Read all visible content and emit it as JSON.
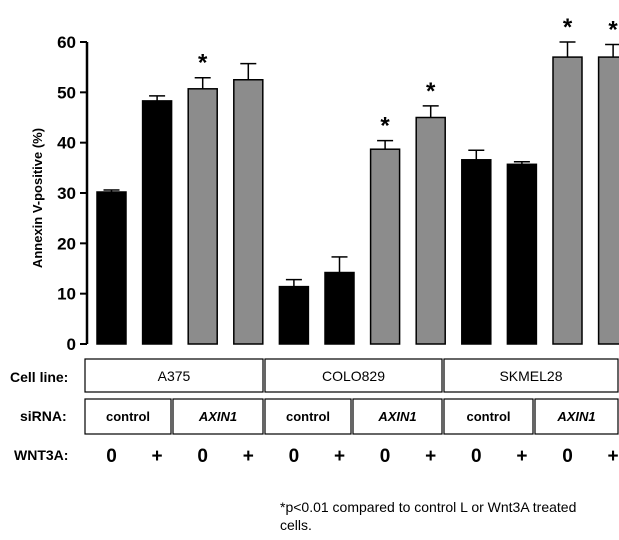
{
  "chart_data": {
    "type": "bar",
    "ylabel": "Annexin V-positive (%)",
    "ylim": [
      0,
      60
    ],
    "yticks": [
      "0",
      "10",
      "20",
      "30",
      "40",
      "50",
      "60"
    ],
    "bars": [
      {
        "cell_line": "A375",
        "sirna": "control",
        "wnt3a": "0",
        "value": 30.2,
        "error": 0.4,
        "color": "#000000",
        "star": ""
      },
      {
        "cell_line": "A375",
        "sirna": "control",
        "wnt3a": "+",
        "value": 48.3,
        "error": 1.0,
        "color": "#000000",
        "star": ""
      },
      {
        "cell_line": "A375",
        "sirna": "AXIN1",
        "wnt3a": "0",
        "value": 50.7,
        "error": 2.2,
        "color": "#8c8c8c",
        "star": "*"
      },
      {
        "cell_line": "A375",
        "sirna": "AXIN1",
        "wnt3a": "+",
        "value": 52.5,
        "error": 3.2,
        "color": "#8c8c8c",
        "star": ""
      },
      {
        "cell_line": "COLO829",
        "sirna": "control",
        "wnt3a": "0",
        "value": 11.4,
        "error": 1.4,
        "color": "#000000",
        "star": ""
      },
      {
        "cell_line": "COLO829",
        "sirna": "control",
        "wnt3a": "+",
        "value": 14.2,
        "error": 3.1,
        "color": "#000000",
        "star": ""
      },
      {
        "cell_line": "COLO829",
        "sirna": "AXIN1",
        "wnt3a": "0",
        "value": 38.7,
        "error": 1.7,
        "color": "#8c8c8c",
        "star": "*"
      },
      {
        "cell_line": "COLO829",
        "sirna": "AXIN1",
        "wnt3a": "+",
        "value": 45.0,
        "error": 2.3,
        "color": "#8c8c8c",
        "star": "*"
      },
      {
        "cell_line": "SKMEL28",
        "sirna": "control",
        "wnt3a": "0",
        "value": 36.6,
        "error": 1.9,
        "color": "#000000",
        "star": ""
      },
      {
        "cell_line": "SKMEL28",
        "sirna": "control",
        "wnt3a": "+",
        "value": 35.7,
        "error": 0.5,
        "color": "#000000",
        "star": ""
      },
      {
        "cell_line": "SKMEL28",
        "sirna": "AXIN1",
        "wnt3a": "0",
        "value": 57.0,
        "error": 3.0,
        "color": "#8c8c8c",
        "star": "*"
      },
      {
        "cell_line": "SKMEL28",
        "sirna": "AXIN1",
        "wnt3a": "+",
        "value": 57.0,
        "error": 2.5,
        "color": "#8c8c8c",
        "star": "*"
      }
    ],
    "grid": false,
    "legend": "none"
  },
  "table": {
    "cell_line_label": "Cell line:",
    "sirna_label": "siRNA:",
    "wnt3a_label": "WNT3A:",
    "cell_lines": [
      "A375",
      "COLO829",
      "SKMEL28"
    ],
    "sirna_groups": [
      "control",
      "AXIN1",
      "control",
      "AXIN1",
      "control",
      "AXIN1"
    ],
    "wnt3a_values": [
      "0",
      "+",
      "0",
      "+",
      "0",
      "+",
      "0",
      "+",
      "0",
      "+",
      "0",
      "+"
    ]
  },
  "footnote": "*p<0.01 compared to control L or Wnt3A treated cells."
}
